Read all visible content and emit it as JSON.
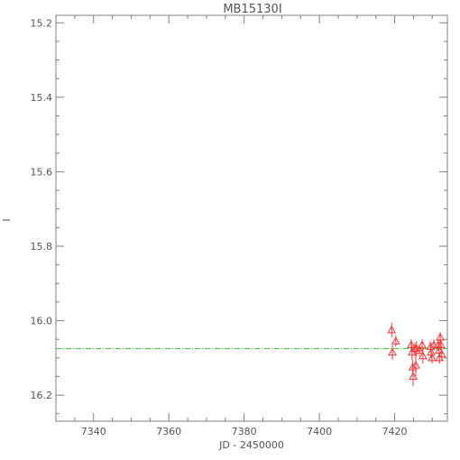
{
  "chart_data": {
    "type": "scatter",
    "title": "MB15130I",
    "xlabel": "JD - 2450000",
    "ylabel": "I",
    "xlim": [
      7330,
      7434
    ],
    "ylim": [
      16.27,
      15.18
    ],
    "y_inverted": true,
    "grid": false,
    "x_ticks": [
      7340,
      7360,
      7380,
      7400,
      7420
    ],
    "x_tick_labels": [
      "7340",
      "7360",
      "7380",
      "7400",
      "7420"
    ],
    "y_ticks": [
      15.2,
      15.4,
      15.6,
      15.8,
      16.0,
      16.2
    ],
    "y_tick_labels": [
      "15.2",
      "15.4",
      "15.6",
      "15.8",
      "16.0",
      "16.2"
    ],
    "reference_line": {
      "y": 16.075,
      "color": "#33cc33",
      "style": "dash-dot"
    },
    "series": [
      {
        "marker": "triangle",
        "color": "#ff3333",
        "points": [
          {
            "x": 7419.2,
            "y": 16.025,
            "err": 0.02
          },
          {
            "x": 7419.4,
            "y": 16.085,
            "err": 0.02
          },
          {
            "x": 7420.3,
            "y": 16.055,
            "err": 0.015
          },
          {
            "x": 7424.4,
            "y": 16.065,
            "err": 0.015
          },
          {
            "x": 7424.6,
            "y": 16.085,
            "err": 0.02
          },
          {
            "x": 7424.8,
            "y": 16.125,
            "err": 0.02
          },
          {
            "x": 7424.9,
            "y": 16.15,
            "err": 0.025
          },
          {
            "x": 7425.4,
            "y": 16.075,
            "err": 0.015
          },
          {
            "x": 7425.6,
            "y": 16.12,
            "err": 0.03
          },
          {
            "x": 7425.8,
            "y": 16.075,
            "err": 0.02
          },
          {
            "x": 7426.6,
            "y": 16.08,
            "err": 0.015
          },
          {
            "x": 7427.3,
            "y": 16.065,
            "err": 0.015
          },
          {
            "x": 7427.5,
            "y": 16.095,
            "err": 0.02
          },
          {
            "x": 7429.5,
            "y": 16.07,
            "err": 0.015
          },
          {
            "x": 7429.7,
            "y": 16.085,
            "err": 0.015
          },
          {
            "x": 7429.9,
            "y": 16.1,
            "err": 0.015
          },
          {
            "x": 7430.4,
            "y": 16.065,
            "err": 0.015
          },
          {
            "x": 7431.6,
            "y": 16.065,
            "err": 0.015
          },
          {
            "x": 7431.8,
            "y": 16.08,
            "err": 0.015
          },
          {
            "x": 7431.9,
            "y": 16.1,
            "err": 0.015
          },
          {
            "x": 7432.1,
            "y": 16.045,
            "err": 0.015
          },
          {
            "x": 7432.3,
            "y": 16.065,
            "err": 0.015
          },
          {
            "x": 7432.5,
            "y": 16.09,
            "err": 0.015
          }
        ]
      }
    ]
  }
}
